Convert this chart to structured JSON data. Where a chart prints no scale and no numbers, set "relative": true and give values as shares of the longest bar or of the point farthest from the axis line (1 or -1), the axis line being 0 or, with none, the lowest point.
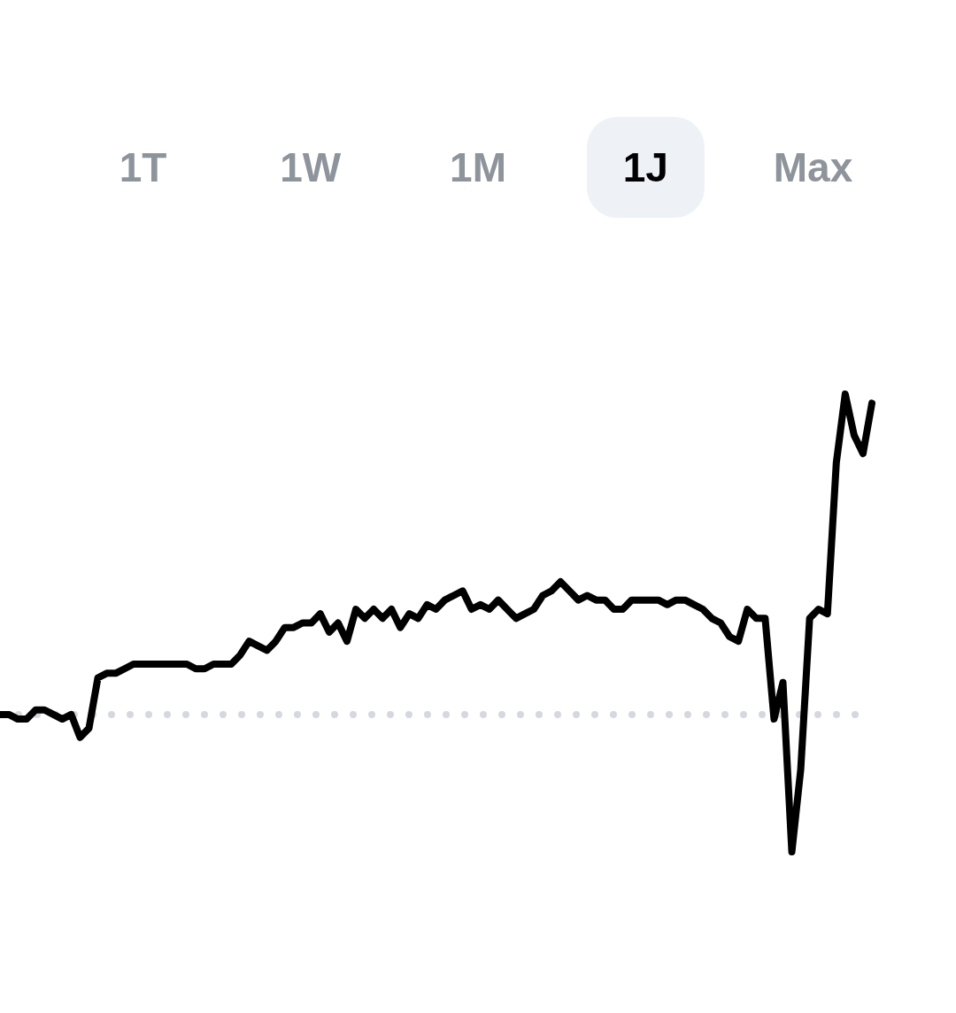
{
  "chart_data": {
    "type": "line",
    "relative": true,
    "color": "#000000",
    "line_style": "solid",
    "annotations": [
      "1T",
      "1W",
      "1M",
      "1J",
      "Max"
    ],
    "categories": [
      null,
      null,
      null,
      null,
      null,
      null,
      null,
      null,
      null,
      null,
      null,
      null,
      null,
      null,
      null,
      null,
      null,
      null,
      null,
      null,
      null,
      null,
      null,
      null,
      null,
      null,
      null,
      null,
      null,
      null,
      null,
      null,
      null,
      null,
      null,
      null,
      null,
      null,
      null,
      null,
      null,
      null,
      null,
      null,
      null,
      null,
      null,
      null,
      null,
      null,
      null,
      null,
      null,
      null,
      null,
      null,
      null,
      null,
      null,
      null,
      null,
      null,
      null,
      null,
      null,
      null,
      null,
      null,
      null,
      null,
      null,
      null,
      null,
      null,
      null,
      null,
      null,
      null,
      null,
      null,
      null,
      null,
      null,
      null,
      null,
      null,
      null,
      null,
      null,
      null,
      null,
      null,
      null,
      null,
      null,
      null,
      null,
      null,
      null
    ],
    "values": [
      0.3,
      0.3,
      0.29,
      0.29,
      0.31,
      0.31,
      0.3,
      0.29,
      0.3,
      0.25,
      0.27,
      0.38,
      0.39,
      0.39,
      0.4,
      0.41,
      0.41,
      0.41,
      0.41,
      0.41,
      0.41,
      0.41,
      0.4,
      0.4,
      0.41,
      0.41,
      0.41,
      0.43,
      0.46,
      0.45,
      0.44,
      0.46,
      0.49,
      0.49,
      0.5,
      0.5,
      0.52,
      0.48,
      0.5,
      0.46,
      0.53,
      0.51,
      0.53,
      0.51,
      0.53,
      0.49,
      0.52,
      0.51,
      0.54,
      0.53,
      0.55,
      0.56,
      0.57,
      0.53,
      0.54,
      0.53,
      0.55,
      0.53,
      0.51,
      0.52,
      0.53,
      0.56,
      0.57,
      0.59,
      0.57,
      0.55,
      0.56,
      0.55,
      0.55,
      0.53,
      0.53,
      0.55,
      0.55,
      0.55,
      0.55,
      0.54,
      0.55,
      0.55,
      0.54,
      0.53,
      0.51,
      0.5,
      0.47,
      0.46,
      0.53,
      0.51,
      0.51,
      0.29,
      0.37,
      0,
      0.18,
      0.51,
      0.53,
      0.52,
      0.85,
      1,
      0.91,
      0.87,
      0.98
    ],
    "ref_lines": [
      {
        "axis": "y",
        "value": 0.3,
        "color": "#d5d9df",
        "line_style": "dotted"
      }
    ]
  }
}
